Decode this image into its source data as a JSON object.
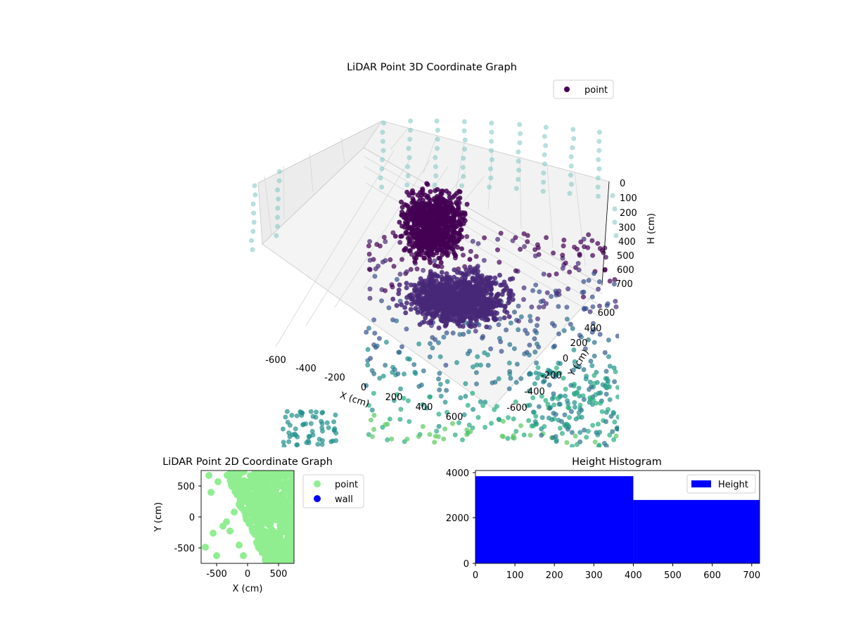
{
  "figure": {
    "top_chart": {
      "title": "LiDAR Point 3D Coordinate Graph",
      "legend": [
        "point"
      ],
      "axes": {
        "x": {
          "label": "X (cm)",
          "ticks": [
            "-600",
            "-400",
            "-200",
            "0",
            "200",
            "400",
            "600"
          ]
        },
        "y": {
          "label": "Y (cm)",
          "ticks": [
            "-600",
            "-400",
            "-200",
            "0",
            "200",
            "400",
            "600"
          ]
        },
        "z": {
          "label": "H (cm)",
          "ticks": [
            "0",
            "100",
            "200",
            "300",
            "400",
            "500",
            "600",
            "700"
          ]
        }
      }
    },
    "bottom_left": {
      "title": "LiDAR Point 2D Coordinate Graph",
      "xlabel": "X (cm)",
      "ylabel": "Y (cm)",
      "xticks": [
        "-500",
        "0",
        "500"
      ],
      "yticks": [
        "500",
        "0",
        "-500"
      ],
      "legend": [
        "point",
        "wall"
      ]
    },
    "bottom_right": {
      "title": "Height Histogram",
      "xticks": [
        "0",
        "100",
        "200",
        "300",
        "400",
        "500",
        "600",
        "700"
      ],
      "yticks": [
        "4000",
        "2000",
        "0"
      ],
      "legend": [
        "Height"
      ]
    }
  },
  "colors": {
    "point_3d_legend": "#440154",
    "point_2d": "#90EE90",
    "wall": "#0000FF",
    "histogram": "#0000FF",
    "ceiling_points": "#7fc7c4"
  },
  "chart_data": [
    {
      "type": "scatter",
      "title": "LiDAR Point 3D Coordinate Graph",
      "xlabel": "X (cm)",
      "ylabel": "Y (cm)",
      "zlabel": "H (cm)",
      "xlim": [
        -700,
        700
      ],
      "ylim": [
        -700,
        700
      ],
      "zlim": [
        0,
        700
      ],
      "z_axis_inverted": true,
      "grid": true,
      "legend": "top-right",
      "series": [
        {
          "name": "point",
          "colormap": "viridis (by height)",
          "clusters": [
            {
              "x": [
                -100,
                100
              ],
              "y": [
                -200,
                200
              ],
              "z": [
                0,
                250
              ]
            },
            {
              "x": [
                -150,
                250
              ],
              "y": [
                -100,
                300
              ],
              "z": [
                500,
                700
              ]
            }
          ]
        }
      ]
    },
    {
      "type": "scatter",
      "title": "LiDAR Point 2D Coordinate Graph",
      "xlabel": "X (cm)",
      "ylabel": "Y (cm)",
      "xlim": [
        -750,
        750
      ],
      "ylim": [
        -750,
        750
      ],
      "legend": "right",
      "series": [
        {
          "name": "point",
          "color": "#90EE90"
        },
        {
          "name": "wall",
          "color": "#0000FF"
        }
      ]
    },
    {
      "type": "bar",
      "title": "Height Histogram",
      "xlim": [
        0,
        720
      ],
      "ylim": [
        0,
        4100
      ],
      "legend": "top-right",
      "bins": [
        {
          "x0": 0,
          "x1": 400,
          "count": 3850
        },
        {
          "x0": 400,
          "x1": 720,
          "count": 2800
        }
      ],
      "series": [
        {
          "name": "Height",
          "color": "#0000FF"
        }
      ]
    }
  ]
}
